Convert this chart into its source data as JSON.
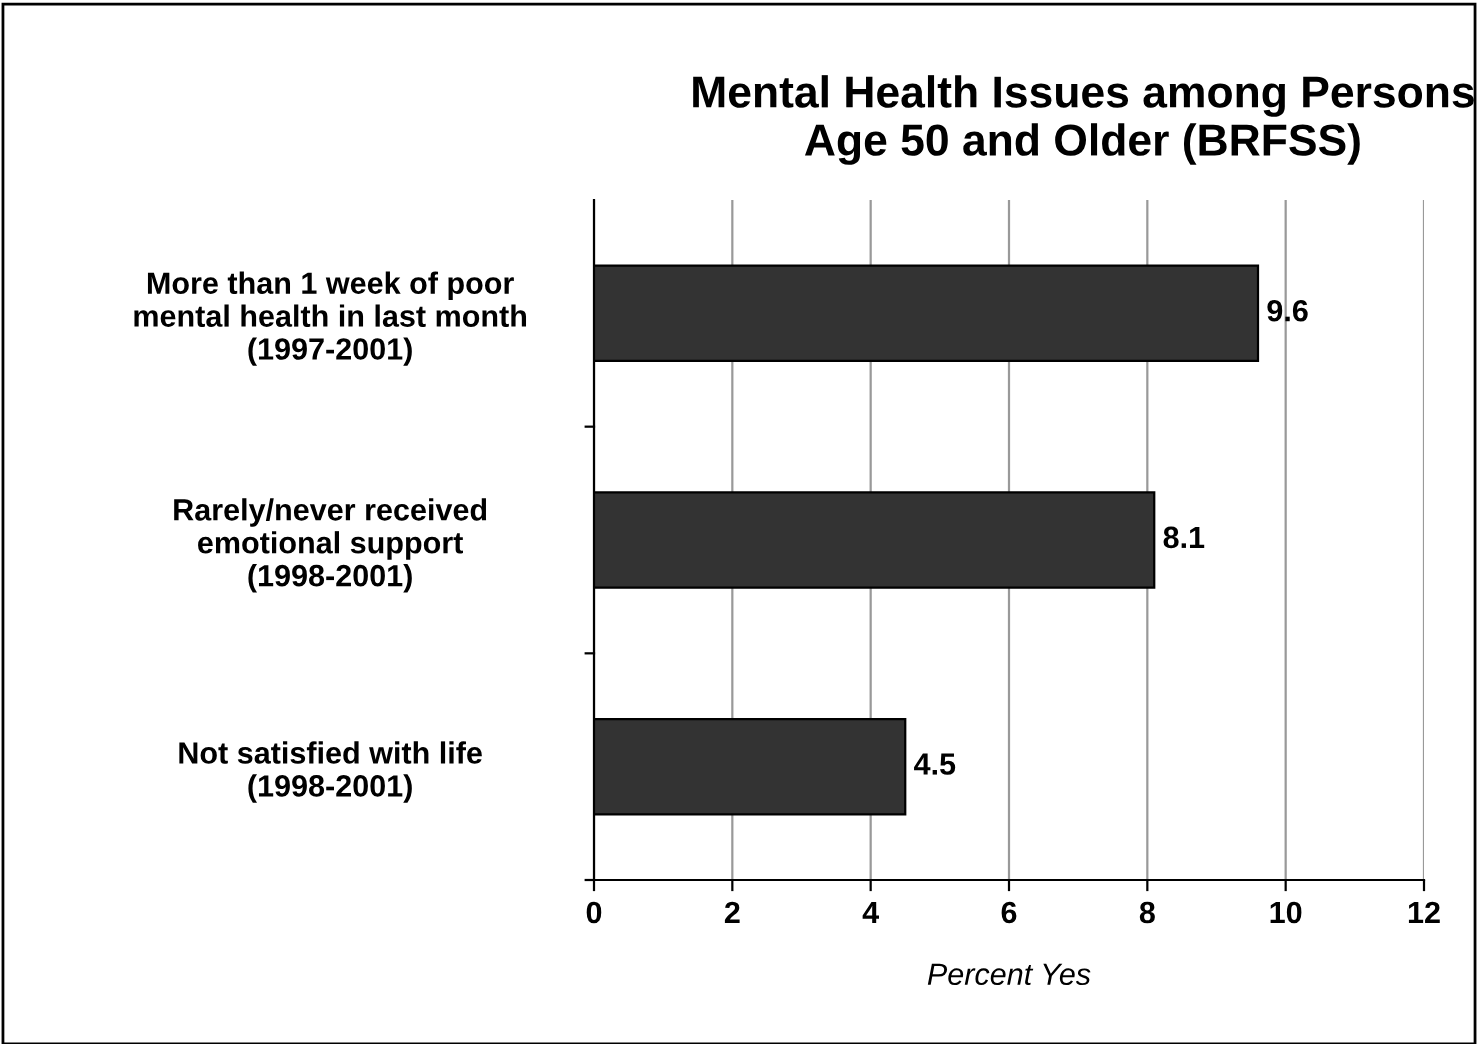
{
  "chart_data": {
    "type": "bar",
    "orientation": "horizontal",
    "title": "Mental Health Issues among Persons\nAge 50 and Older (BRFSS)",
    "xlabel": "Percent Yes",
    "categories": [
      "More than 1 week of poor\nmental health in last month\n(1997-2001)",
      "Rarely/never received\nemotional support\n(1998-2001)",
      "Not satisfied with life\n(1998-2001)"
    ],
    "values": [
      9.6,
      8.1,
      4.5
    ],
    "color": "#333333",
    "xlim": [
      0,
      12
    ],
    "xticks": [
      0,
      2,
      4,
      6,
      8,
      10,
      12
    ],
    "grid": "x",
    "data_labels": true
  }
}
